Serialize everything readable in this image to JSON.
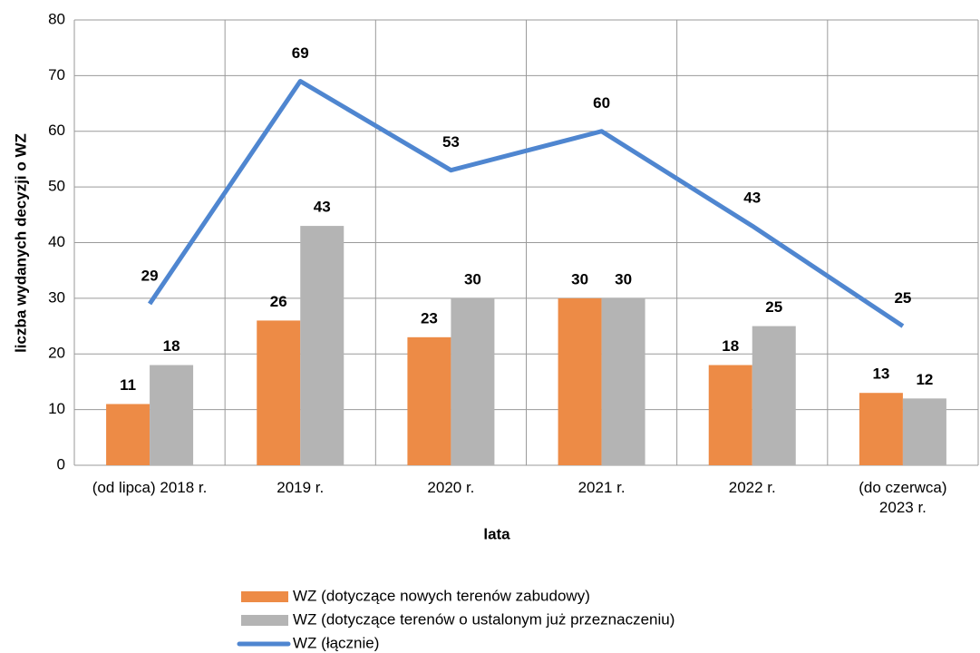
{
  "chart_data": {
    "type": "bar",
    "y_label": "liczba wydanych decyzji o WZ",
    "x_label": "lata",
    "categories": [
      "(od lipca) 2018 r.",
      "2019 r.",
      "2020 r.",
      "2021 r.",
      "2022 r.",
      "(do czerwca)\n2023 r."
    ],
    "series": [
      {
        "name": "WZ (dotyczące nowych terenów zabudowy)",
        "type": "bar",
        "color": "#ED8B46",
        "values": [
          11,
          26,
          23,
          30,
          18,
          13
        ]
      },
      {
        "name": "WZ (dotyczące terenów o ustalonym już przeznaczeniu)",
        "type": "bar",
        "color": "#B4B4B4",
        "values": [
          18,
          43,
          30,
          30,
          25,
          12
        ]
      },
      {
        "name": "WZ (łącznie)",
        "type": "line",
        "color": "#4F86D0",
        "values": [
          29,
          69,
          53,
          60,
          43,
          25
        ]
      }
    ],
    "ylim": [
      0,
      80
    ],
    "yticks": [
      0,
      10,
      20,
      30,
      40,
      50,
      60,
      70,
      80
    ],
    "grid": true,
    "legend": "bottom"
  }
}
